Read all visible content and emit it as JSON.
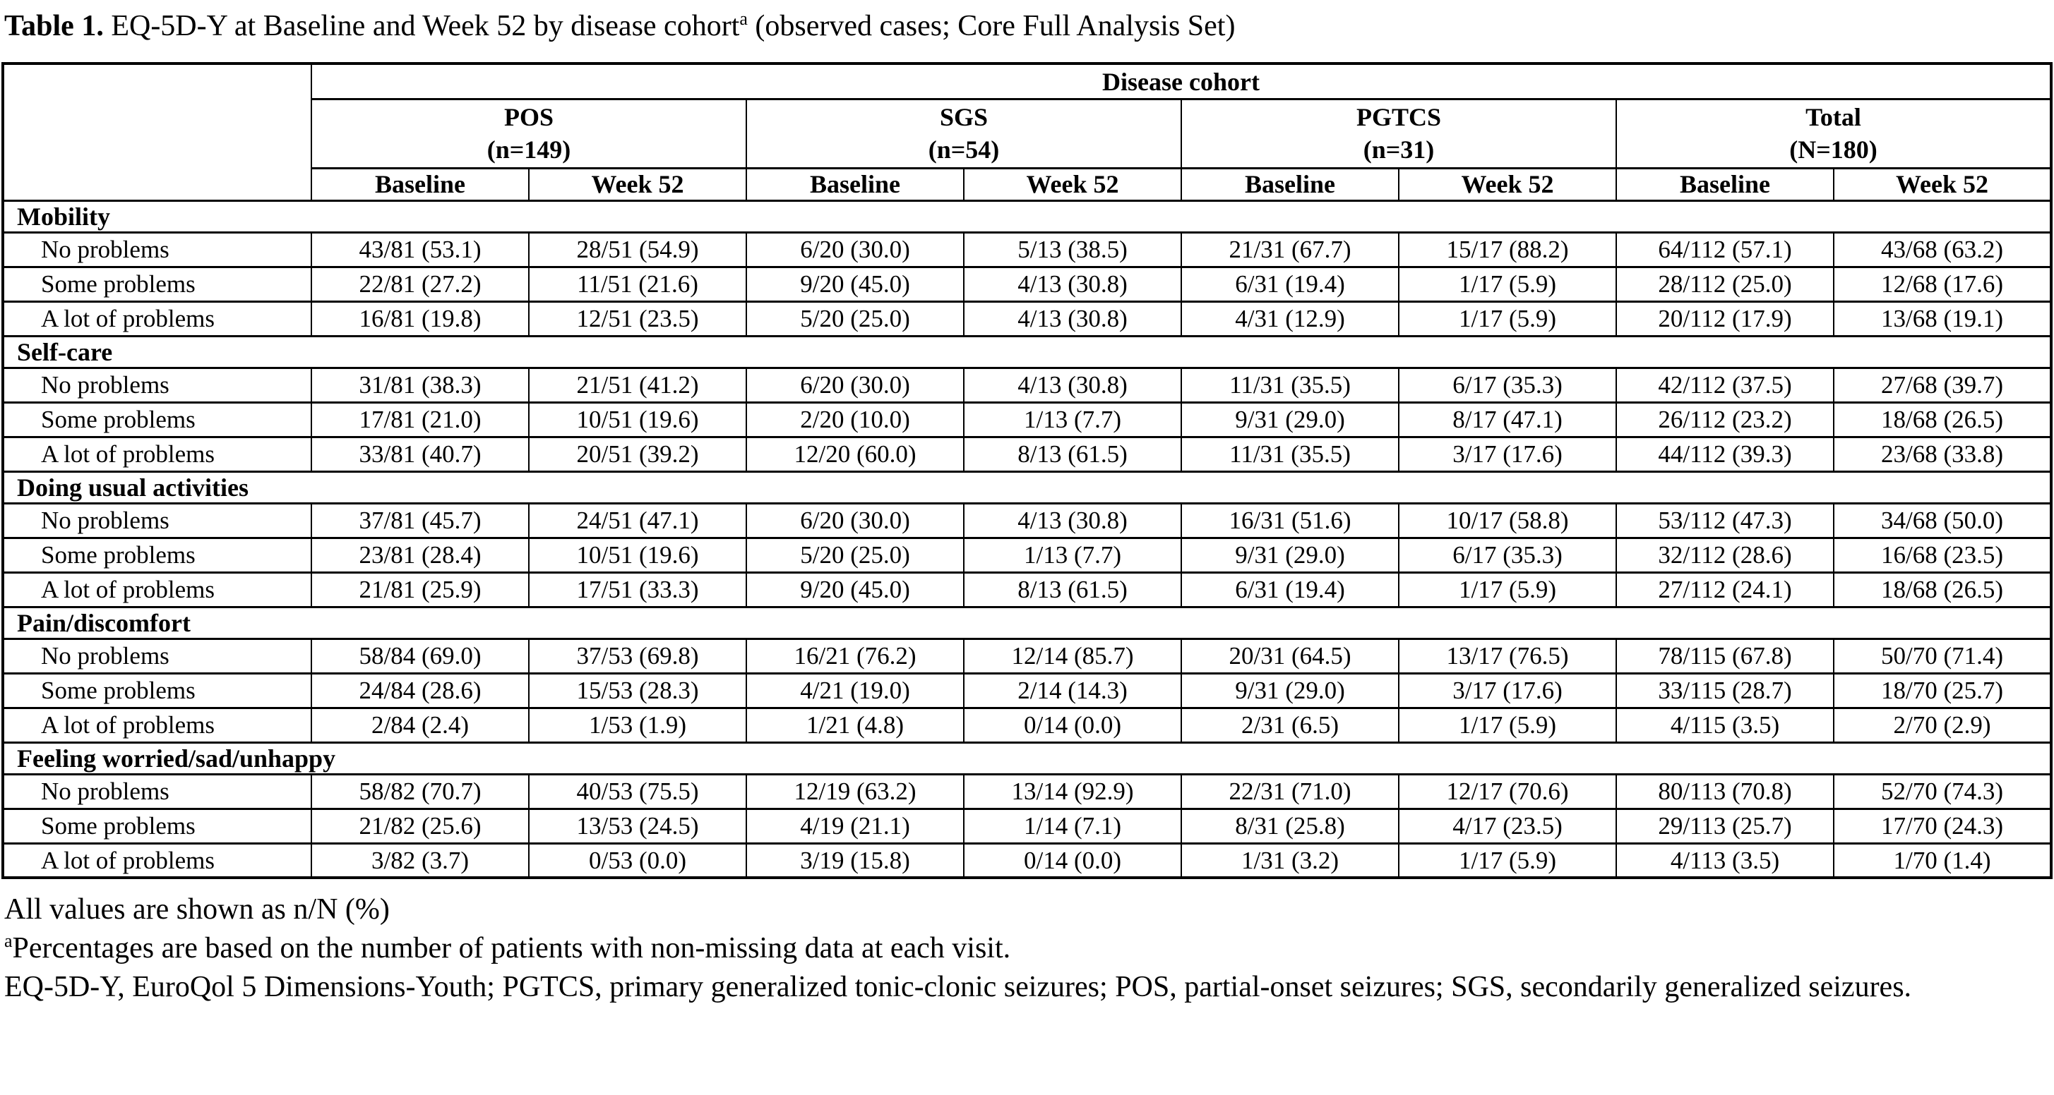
{
  "title": {
    "bold": "Table 1.",
    "main": " EQ-5D-Y at Baseline and Week 52 by disease cohort",
    "sup": "a",
    "rest": " (observed cases; Core Full Analysis Set)"
  },
  "table": {
    "spanner": "Disease cohort",
    "cohorts": [
      {
        "name": "POS",
        "n": "(n=149)"
      },
      {
        "name": "SGS",
        "n": "(n=54)"
      },
      {
        "name": "PGTCS",
        "n": "(n=31)"
      },
      {
        "name": "Total",
        "n": "(N=180)"
      }
    ],
    "visit_headers": [
      "Baseline",
      "Week 52"
    ],
    "sections": [
      {
        "name": "Mobility",
        "rows": [
          {
            "label": "No problems",
            "values": [
              "43/81 (53.1)",
              "28/51 (54.9)",
              "6/20 (30.0)",
              "5/13 (38.5)",
              "21/31 (67.7)",
              "15/17 (88.2)",
              "64/112 (57.1)",
              "43/68 (63.2)"
            ]
          },
          {
            "label": "Some problems",
            "values": [
              "22/81 (27.2)",
              "11/51 (21.6)",
              "9/20 (45.0)",
              "4/13 (30.8)",
              "6/31 (19.4)",
              "1/17 (5.9)",
              "28/112 (25.0)",
              "12/68 (17.6)"
            ]
          },
          {
            "label": "A lot of problems",
            "values": [
              "16/81 (19.8)",
              "12/51 (23.5)",
              "5/20 (25.0)",
              "4/13 (30.8)",
              "4/31 (12.9)",
              "1/17 (5.9)",
              "20/112 (17.9)",
              "13/68 (19.1)"
            ]
          }
        ]
      },
      {
        "name": "Self-care",
        "rows": [
          {
            "label": "No problems",
            "values": [
              "31/81 (38.3)",
              "21/51 (41.2)",
              "6/20 (30.0)",
              "4/13 (30.8)",
              "11/31 (35.5)",
              "6/17 (35.3)",
              "42/112 (37.5)",
              "27/68 (39.7)"
            ]
          },
          {
            "label": "Some problems",
            "values": [
              "17/81 (21.0)",
              "10/51 (19.6)",
              "2/20 (10.0)",
              "1/13 (7.7)",
              "9/31 (29.0)",
              "8/17 (47.1)",
              "26/112 (23.2)",
              "18/68 (26.5)"
            ]
          },
          {
            "label": "A lot of problems",
            "values": [
              "33/81 (40.7)",
              "20/51 (39.2)",
              "12/20 (60.0)",
              "8/13 (61.5)",
              "11/31 (35.5)",
              "3/17 (17.6)",
              "44/112 (39.3)",
              "23/68 (33.8)"
            ]
          }
        ]
      },
      {
        "name": "Doing usual activities",
        "rows": [
          {
            "label": "No problems",
            "values": [
              "37/81 (45.7)",
              "24/51 (47.1)",
              "6/20 (30.0)",
              "4/13 (30.8)",
              "16/31 (51.6)",
              "10/17 (58.8)",
              "53/112 (47.3)",
              "34/68 (50.0)"
            ]
          },
          {
            "label": "Some problems",
            "values": [
              "23/81 (28.4)",
              "10/51 (19.6)",
              "5/20 (25.0)",
              "1/13 (7.7)",
              "9/31 (29.0)",
              "6/17 (35.3)",
              "32/112 (28.6)",
              "16/68 (23.5)"
            ]
          },
          {
            "label": "A lot of problems",
            "values": [
              "21/81 (25.9)",
              "17/51 (33.3)",
              "9/20 (45.0)",
              "8/13 (61.5)",
              "6/31 (19.4)",
              "1/17 (5.9)",
              "27/112 (24.1)",
              "18/68 (26.5)"
            ]
          }
        ]
      },
      {
        "name": "Pain/discomfort",
        "rows": [
          {
            "label": "No problems",
            "values": [
              "58/84 (69.0)",
              "37/53 (69.8)",
              "16/21 (76.2)",
              "12/14 (85.7)",
              "20/31 (64.5)",
              "13/17 (76.5)",
              "78/115 (67.8)",
              "50/70 (71.4)"
            ]
          },
          {
            "label": "Some problems",
            "values": [
              "24/84 (28.6)",
              "15/53 (28.3)",
              "4/21 (19.0)",
              "2/14 (14.3)",
              "9/31 (29.0)",
              "3/17 (17.6)",
              "33/115 (28.7)",
              "18/70 (25.7)"
            ]
          },
          {
            "label": "A lot of problems",
            "values": [
              "2/84 (2.4)",
              "1/53 (1.9)",
              "1/21 (4.8)",
              "0/14 (0.0)",
              "2/31 (6.5)",
              "1/17 (5.9)",
              "4/115 (3.5)",
              "2/70 (2.9)"
            ]
          }
        ]
      },
      {
        "name": "Feeling worried/sad/unhappy",
        "rows": [
          {
            "label": "No problems",
            "values": [
              "58/82 (70.7)",
              "40/53 (75.5)",
              "12/19 (63.2)",
              "13/14 (92.9)",
              "22/31 (71.0)",
              "12/17 (70.6)",
              "80/113 (70.8)",
              "52/70 (74.3)"
            ]
          },
          {
            "label": "Some problems",
            "values": [
              "21/82 (25.6)",
              "13/53 (24.5)",
              "4/19 (21.1)",
              "1/14 (7.1)",
              "8/31 (25.8)",
              "4/17 (23.5)",
              "29/113 (25.7)",
              "17/70 (24.3)"
            ]
          },
          {
            "label": "A lot of problems",
            "values": [
              "3/82 (3.7)",
              "0/53 (0.0)",
              "3/19 (15.8)",
              "0/14 (0.0)",
              "1/31 (3.2)",
              "1/17 (5.9)",
              "4/113 (3.5)",
              "1/70 (1.4)"
            ]
          }
        ]
      }
    ]
  },
  "footnotes": {
    "line1": "All values are shown as n/N (%)",
    "line2_sup": "a",
    "line2": "Percentages are based on the number of patients with non-missing data at each visit.",
    "line3": "EQ-5D-Y, EuroQol 5 Dimensions-Youth; PGTCS, primary generalized tonic-clonic seizures; POS, partial-onset seizures; SGS, secondarily generalized seizures."
  }
}
